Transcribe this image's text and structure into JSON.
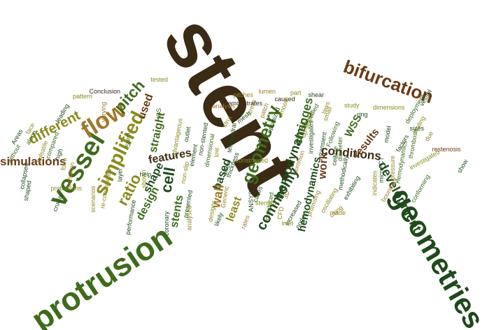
{
  "palette": {
    "dark_brown": "#3b2a14",
    "dark_green": "#1f4a1a",
    "green": "#3f6b1c",
    "olive": "#8a8a1f",
    "tan": "#a0782a",
    "brown": "#6b3a14",
    "rust": "#8b3f12"
  },
  "words": [
    {
      "text": "stent",
      "color": "dark_brown"
    },
    {
      "text": "bifurcation",
      "color": "brown"
    },
    {
      "text": "geometries",
      "color": "dark_green"
    },
    {
      "text": "protrusion",
      "color": "green"
    },
    {
      "text": "vessel",
      "color": "green"
    },
    {
      "text": "flow",
      "color": "tan"
    },
    {
      "text": "pitch",
      "color": "green"
    },
    {
      "text": "simplified",
      "color": "olive"
    },
    {
      "text": "ratio",
      "color": "olive"
    },
    {
      "text": "design",
      "color": "green"
    },
    {
      "text": "shape",
      "color": "dark_green"
    },
    {
      "text": "cell",
      "color": "dark_green"
    },
    {
      "text": "stents",
      "color": "green"
    },
    {
      "text": "features",
      "color": "dark_brown"
    },
    {
      "text": "straight",
      "color": "green"
    },
    {
      "text": "used",
      "color": "brown"
    },
    {
      "text": "different",
      "color": "olive"
    },
    {
      "text": "simulations",
      "color": "brown"
    },
    {
      "text": "geometry",
      "color": "green"
    },
    {
      "text": "based",
      "color": "dark_green"
    },
    {
      "text": "wall",
      "color": "tan"
    },
    {
      "text": "least",
      "color": "olive"
    },
    {
      "text": "hemodynamic",
      "color": "dark_green"
    },
    {
      "text": "changes",
      "color": "green"
    },
    {
      "text": "commonly",
      "color": "dark_green"
    },
    {
      "text": "conditions",
      "color": "dark_brown"
    },
    {
      "text": "work",
      "color": "brown"
    },
    {
      "text": "hemodynamics",
      "color": "dark_green"
    },
    {
      "text": "results",
      "color": "brown"
    },
    {
      "text": "WSS",
      "color": "green"
    },
    {
      "text": "development",
      "color": "dark_green"
    },
    {
      "text": "Conclusion",
      "color": "dark_brown"
    },
    {
      "text": "pattern",
      "color": "olive"
    },
    {
      "text": "varying",
      "color": "tan"
    },
    {
      "text": "tested",
      "color": "olive"
    },
    {
      "text": "leading",
      "color": "dark_green"
    },
    {
      "text": "ICS",
      "color": "green"
    },
    {
      "text": "pitches",
      "color": "olive"
    },
    {
      "text": "lumen",
      "color": "tan"
    },
    {
      "text": "caused",
      "color": "dark_brown"
    },
    {
      "text": "part",
      "color": "olive"
    },
    {
      "text": "shear",
      "color": "dark_green"
    },
    {
      "text": "study",
      "color": "olive"
    },
    {
      "text": "ring",
      "color": "dark_green"
    },
    {
      "text": "Following",
      "color": "green"
    },
    {
      "text": "sizes",
      "color": "dark_green"
    },
    {
      "text": "due",
      "color": "olive"
    },
    {
      "text": "thrombosis",
      "color": "green"
    },
    {
      "text": "restenosis",
      "color": "brown"
    },
    {
      "text": "factors",
      "color": "dark_green"
    },
    {
      "text": "investigated",
      "color": "olive"
    },
    {
      "text": "show",
      "color": "dark_green"
    },
    {
      "text": "Hemodynamics",
      "color": "green"
    },
    {
      "text": "pressure",
      "color": "olive"
    },
    {
      "text": "micro-CT",
      "color": "dark_green"
    },
    {
      "text": "conforming",
      "color": "green"
    },
    {
      "text": "scaling",
      "color": "olive"
    },
    {
      "text": "boundary",
      "color": "tan"
    },
    {
      "text": "indicates",
      "color": "olive"
    },
    {
      "text": "exhibiting",
      "color": "dark_green"
    },
    {
      "text": "oscillating",
      "color": "olive"
    },
    {
      "text": "size",
      "color": "green"
    },
    {
      "text": "using",
      "color": "tan"
    },
    {
      "text": "made",
      "color": "olive"
    },
    {
      "text": "increased",
      "color": "dark_green"
    },
    {
      "text": "methodically",
      "color": "dark_green"
    },
    {
      "text": "diameter",
      "color": "green"
    },
    {
      "text": "cell",
      "color": "dark_green"
    },
    {
      "text": "investigates",
      "color": "dark_green"
    },
    {
      "text": "laws",
      "color": "olive"
    },
    {
      "text": "up-scaled",
      "color": "olive"
    },
    {
      "text": "identified",
      "color": "green"
    },
    {
      "text": "smooth",
      "color": "olive"
    },
    {
      "text": "optimized",
      "color": "dark_green"
    },
    {
      "text": "patch",
      "color": "tan"
    },
    {
      "text": "stress",
      "color": "olive"
    },
    {
      "text": "mesh",
      "color": "dark_green"
    },
    {
      "text": "strut",
      "color": "olive"
    },
    {
      "text": "analysis",
      "color": "tan"
    },
    {
      "text": "demonstrates",
      "color": "dark_brown"
    },
    {
      "text": "nodes",
      "color": "dark_green"
    },
    {
      "text": "inlet",
      "color": "olive"
    },
    {
      "text": "CFD",
      "color": "olive"
    },
    {
      "text": "introduced",
      "color": "green"
    },
    {
      "text": "cases",
      "color": "dark_green"
    },
    {
      "text": "ANSYS",
      "color": "dark_green"
    },
    {
      "text": "constrained",
      "color": "olive"
    },
    {
      "text": "artery",
      "color": "dark_green"
    },
    {
      "text": "tetrahedral",
      "color": "dark_green"
    },
    {
      "text": "thickness",
      "color": "dark_green"
    },
    {
      "text": "rates",
      "color": "tan"
    },
    {
      "text": "stented",
      "color": "olive"
    },
    {
      "text": "Generic",
      "color": "olive"
    },
    {
      "text": "designs",
      "color": "olive"
    },
    {
      "text": "likely",
      "color": "dark_green"
    },
    {
      "text": "low",
      "color": "olive"
    },
    {
      "text": "dimensional",
      "color": "green"
    },
    {
      "text": "non-stented",
      "color": "dark_green"
    },
    {
      "text": "element",
      "color": "dark_green"
    },
    {
      "text": "presented",
      "color": "dark_green"
    },
    {
      "text": "analysed",
      "color": "olive"
    },
    {
      "text": "non-slip",
      "color": "olive"
    },
    {
      "text": "outlet",
      "color": "dark_green"
    },
    {
      "text": "coronary",
      "color": "dark_green"
    },
    {
      "text": "advantageous",
      "color": "olive"
    },
    {
      "text": "help",
      "color": "dark_green"
    },
    {
      "text": "shown",
      "color": "olive"
    },
    {
      "text": "performance",
      "color": "dark_green"
    },
    {
      "text": "layer",
      "color": "dark_green"
    },
    {
      "text": "scenarios",
      "color": "olive"
    },
    {
      "text": "re-constructed",
      "color": "olive"
    },
    {
      "text": "Stent",
      "color": "green"
    },
    {
      "text": "crucial",
      "color": "dark_green"
    },
    {
      "text": "protrusions",
      "color": "olive"
    },
    {
      "text": "high",
      "color": "dark_green"
    },
    {
      "text": "compared",
      "color": "green"
    },
    {
      "text": "form",
      "color": "olive"
    },
    {
      "text": "condition",
      "color": "tan"
    },
    {
      "text": "pulsatile",
      "color": "olive"
    },
    {
      "text": "along",
      "color": "green"
    },
    {
      "text": "shaped",
      "color": "dark_green"
    },
    {
      "text": "collapsed",
      "color": "dark_green"
    },
    {
      "text": "Areas",
      "color": "dark_green"
    },
    {
      "text": "without",
      "color": "green"
    },
    {
      "text": "face",
      "color": "olive"
    },
    {
      "text": "deployment",
      "color": "green"
    },
    {
      "text": "vessel",
      "color": "dark_green"
    },
    {
      "text": "transient",
      "color": "dark_green"
    },
    {
      "text": "small",
      "color": "olive"
    },
    {
      "text": "dimensions",
      "color": "olive"
    },
    {
      "text": "model",
      "color": "dark_green"
    },
    {
      "text": "common",
      "color": "tan"
    },
    {
      "text": "3D",
      "color": "tan"
    },
    {
      "text": "promising",
      "color": "olive"
    }
  ]
}
